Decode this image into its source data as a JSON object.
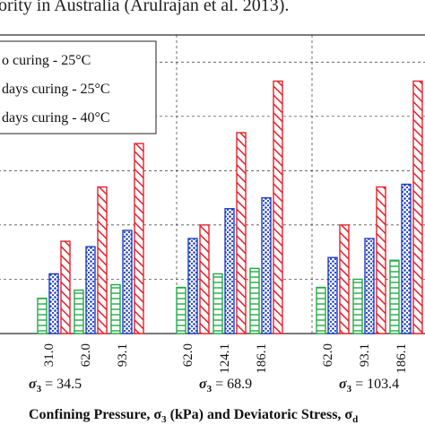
{
  "caption_fragment": "ority in Australia (Arulrajan et al. 2013).",
  "chart_data": {
    "type": "bar",
    "title": "",
    "ylabel": "",
    "xlabel_prefix": "Confining Pressure, σ",
    "xlabel_sub1": "3",
    "xlabel_mid": " (kPa) and Deviatoric Stress, σ",
    "xlabel_sub2": "d",
    "legend_placement": "top-left",
    "legend": [
      {
        "label": "o curing - 25°C",
        "pattern": "horizontal-lines",
        "color": "#22aa44"
      },
      {
        "label": "days curing - 25°C",
        "pattern": "dots",
        "color": "#1f3fc4"
      },
      {
        "label": "days curing - 40°C",
        "pattern": "diagonal-lines",
        "color": "#e8202a"
      }
    ],
    "groups": [
      {
        "sigma_label": "σ",
        "sigma_sub": "3",
        "sigma_value": " = 34.5",
        "categories": [
          "31.0",
          "62.0",
          "93.1"
        ],
        "series_values": [
          [
            0.65,
            0.8,
            0.9
          ],
          [
            1.1,
            1.6,
            1.9
          ],
          [
            1.7,
            2.7,
            3.5
          ]
        ]
      },
      {
        "sigma_label": "σ",
        "sigma_sub": "3",
        "sigma_value": " = 68.9",
        "categories": [
          "62.0",
          "124.1",
          "186.1"
        ],
        "series_values": [
          [
            0.85,
            1.1,
            1.2
          ],
          [
            1.75,
            2.3,
            2.5
          ],
          [
            2.0,
            3.7,
            4.65
          ]
        ]
      },
      {
        "sigma_label": "σ",
        "sigma_sub": "3",
        "sigma_value": " = 103.4",
        "categories": [
          "62.0",
          "93.1",
          "186.1"
        ],
        "series_values": [
          [
            0.85,
            1.0,
            1.35
          ],
          [
            1.4,
            1.75,
            2.75
          ],
          [
            2.0,
            2.7,
            4.65
          ]
        ]
      }
    ],
    "ylim": [
      0,
      5.5
    ],
    "grid": true
  }
}
